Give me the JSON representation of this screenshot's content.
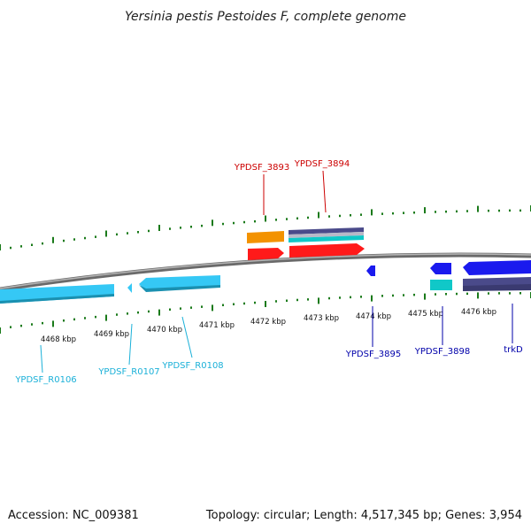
{
  "title": "Yersinia pestis Pestoides F, complete genome",
  "footer": {
    "accession": "Accession: NC_009381",
    "summary": "Topology: circular; Length: 4,517,345 bp; Genes: 3,954"
  },
  "scale_labels": [
    "4468 kbp",
    "4469 kbp",
    "4470 kbp",
    "4471 kbp",
    "4472 kbp",
    "4473 kbp",
    "4474 kbp",
    "4475 kbp",
    "4476 kbp"
  ],
  "gene_labels": {
    "ypdsf_3893": "YPDSF_3893",
    "ypdsf_3894": "YPDSF_3894",
    "ypdsf_3895": "YPDSF_3895",
    "ypdsf_3898": "YPDSF_3898",
    "trkd": "trkD",
    "ypdsf_r0106": "YPDSF_R0106",
    "ypdsf_r0107": "YPDSF_R0107",
    "ypdsf_r0108": "YPDSF_R0108"
  },
  "colors": {
    "backbone": "#8a8a8a",
    "tick": "#1a7a1a",
    "red_label": "#cc0000",
    "blue_label": "#0000aa",
    "cyan_label": "#1ab0d8",
    "orange": "#f39200",
    "red": "#ff1a1a",
    "light_blue": "#35c8f5",
    "blue": "#1a1aee",
    "teal": "#10c8c8",
    "slate": "#4a4a8a"
  }
}
